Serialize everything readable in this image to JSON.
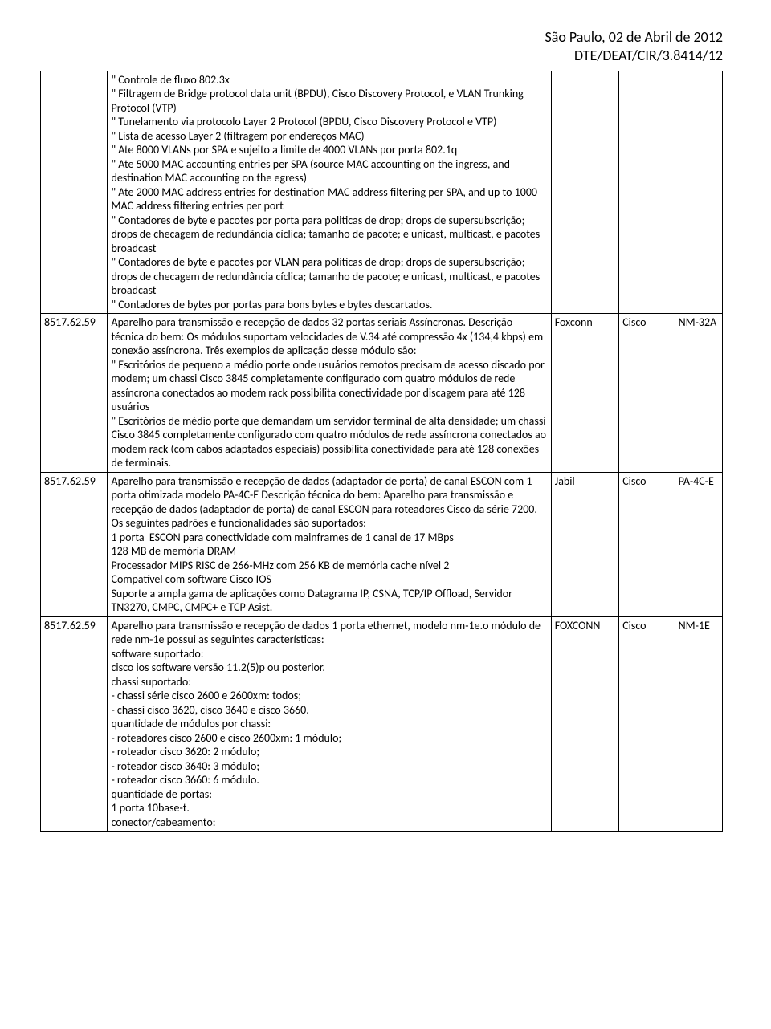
{
  "header": {
    "line1": "São Paulo, 02 de Abril de 2012",
    "line2": "DTE/DEAT/CIR/3.8414/12"
  },
  "rows": [
    {
      "code": "",
      "desc": "\" Controle de fluxo 802.3x\n\" Filtragem de Bridge protocol data unit (BPDU), Cisco Discovery Protocol, e VLAN Trunking Protocol (VTP)\n\" Tunelamento via protocolo Layer 2 Protocol (BPDU, Cisco Discovery Protocol e VTP)\n\" Lista de acesso Layer 2 (filtragem por endereços MAC)\n\" Ate 8000 VLANs por SPA e sujeito a limite de 4000 VLANs por porta 802.1q\n\" Ate 5000 MAC accounting entries per SPA (source MAC accounting on the ingress, and destination MAC accounting on the egress)\n\" Ate 2000 MAC address entries for destination MAC address filtering per SPA, and up to 1000 MAC address filtering entries per port\n\" Contadores de byte e pacotes por porta para politicas de drop; drops de supersubscrição; drops de checagem de redundância cíclica; tamanho de pacote; e unicast, multicast, e pacotes broadcast\n\" Contadores de byte e pacotes por VLAN para politicas de drop; drops de supersubscrição; drops de checagem de redundância cíclica; tamanho de pacote; e unicast, multicast, e pacotes broadcast\n\" Contadores de bytes por portas para bons bytes e bytes descartados.",
      "mfr": "",
      "brand": "",
      "model": ""
    },
    {
      "code": "8517.62.59",
      "desc": "Aparelho para transmissão e recepção de dados 32 portas seriais Assíncronas. Descrição técnica do bem: Os módulos suportam velocidades de V.34 até compressão 4x (134,4 kbps) em conexão assíncrona. Três exemplos de aplicação desse módulo são:\n\" Escritórios de pequeno a médio porte onde usuários remotos precisam de acesso discado por modem; um chassi Cisco 3845 completamente configurado com quatro módulos de rede assíncrona conectados ao modem rack possibilita conectividade por discagem para até 128 usuários\n\" Escritórios de médio porte que demandam um servidor terminal de alta densidade; um chassi Cisco 3845 completamente configurado com quatro módulos de rede assíncrona conectados ao modem rack (com cabos adaptados especiais) possibilita conectividade para até 128 conexões de terminais.",
      "mfr": "Foxconn",
      "brand": "Cisco",
      "model": "NM-32A"
    },
    {
      "code": "8517.62.59",
      "desc": "Aparelho para transmissão e recepção de dados (adaptador de porta) de canal ESCON com 1 porta otimizada modelo PA-4C-E Descrição técnica do bem: Aparelho para transmissão e recepção de dados (adaptador de porta) de canal ESCON para roteadores Cisco da série 7200. Os seguintes padrões e funcionalidades são suportados:\n1 porta  ESCON para conectividade com mainframes de 1 canal de 17 MBps\n128 MB de memória DRAM\nProcessador MIPS RISC de 266-MHz com 256 KB de memória cache nível 2\nCompatível com software Cisco IOS\nSuporte a ampla gama de aplicações como Datagrama IP, CSNA, TCP/IP Offload, Servidor TN3270, CMPC, CMPC+ e TCP Asist.",
      "mfr": "Jabil",
      "brand": "Cisco",
      "model": " PA-4C-E"
    },
    {
      "code": "8517.62.59",
      "desc": "Aparelho para transmissão e recepção de dados 1 porta ethernet, modelo nm-1e.o módulo de rede nm-1e possui as seguintes características:\nsoftware suportado:\ncisco ios software versão 11.2(5)p ou posterior.\nchassi suportado:\n- chassi série cisco 2600 e 2600xm: todos;\n- chassi cisco 3620, cisco 3640 e cisco 3660.\nquantidade de módulos por chassi:\n- roteadores cisco 2600 e cisco 2600xm: 1 módulo;\n- roteador cisco 3620: 2 módulo;\n- roteador cisco 3640: 3 módulo;\n- roteador cisco 3660: 6 módulo.\nquantidade de portas:\n1 porta 10base-t.\nconector/cabeamento:",
      "mfr": "FOXCONN",
      "brand": "Cisco",
      "model": "NM-1E"
    }
  ]
}
